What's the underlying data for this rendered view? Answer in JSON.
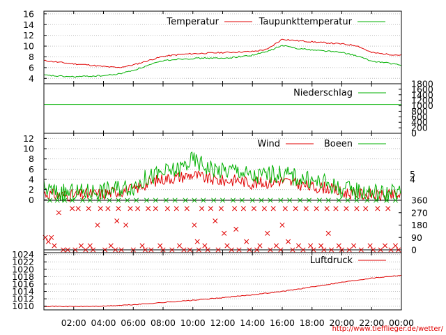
{
  "source_url": "http://www.tiefflieger.de/wetter/",
  "colors": {
    "series_red": "#e00000",
    "series_green": "#00b000",
    "grid": "#c0c0c0",
    "axis": "#000000"
  },
  "time_axis": {
    "ticks": [
      "02:00",
      "04:00",
      "06:00",
      "08:00",
      "10:00",
      "12:00",
      "14:00",
      "16:00",
      "18:00",
      "20:00",
      "22:00",
      "00:00"
    ],
    "tick_hours": [
      2,
      4,
      6,
      8,
      10,
      12,
      14,
      16,
      18,
      20,
      22,
      24
    ],
    "range_hours": [
      0,
      24
    ]
  },
  "chart_data": [
    {
      "type": "line",
      "panel": "temperature",
      "ylim": [
        3,
        16.5
      ],
      "yticks": [
        4,
        6,
        8,
        10,
        12,
        14,
        16
      ],
      "grid": true,
      "legend_placement": "top-right",
      "x_hours": [
        0,
        1,
        2,
        3,
        4,
        5,
        6,
        7,
        8,
        9,
        10,
        11,
        12,
        13,
        14,
        15,
        16,
        17,
        18,
        19,
        20,
        21,
        22,
        23,
        24
      ],
      "series": [
        {
          "name": "Temperatur",
          "color": "#e00000",
          "values": [
            7.3,
            7.0,
            6.7,
            6.5,
            6.2,
            6.0,
            6.5,
            7.3,
            8.1,
            8.4,
            8.6,
            8.7,
            8.8,
            8.9,
            9.0,
            9.4,
            11.3,
            11.0,
            10.8,
            10.6,
            10.4,
            10.1,
            8.8,
            8.5,
            8.3
          ]
        },
        {
          "name": "Taupunkttemperatur",
          "color": "#00b000",
          "values": [
            4.6,
            4.4,
            4.3,
            4.4,
            4.5,
            4.8,
            5.5,
            6.4,
            7.3,
            7.6,
            7.7,
            7.8,
            7.7,
            8.0,
            8.3,
            9.0,
            10.1,
            9.6,
            9.3,
            9.1,
            8.8,
            8.2,
            7.2,
            6.9,
            6.4
          ]
        }
      ]
    },
    {
      "type": "line",
      "panel": "precipitation",
      "ylim": [
        0,
        1800
      ],
      "yticks": [
        0,
        200,
        400,
        600,
        800,
        1000,
        1200,
        1400,
        1600,
        1800
      ],
      "grid": false,
      "legend_placement": "top-right",
      "series": [
        {
          "name": "Niederschlag",
          "color": "#00b000",
          "x_hours": [
            0,
            24
          ],
          "values": [
            1050,
            1050
          ]
        }
      ]
    },
    {
      "type": "line",
      "panel": "wind",
      "ylim": [
        -0.5,
        13
      ],
      "yticks": [
        0,
        2,
        4,
        6,
        8,
        10,
        12
      ],
      "right_labels": [
        4,
        5
      ],
      "grid": true,
      "legend_placement": "top-right",
      "x_hours": [
        0,
        1,
        2,
        3,
        4,
        5,
        6,
        7,
        8,
        9,
        10,
        11,
        12,
        13,
        14,
        15,
        16,
        17,
        18,
        19,
        20,
        21,
        22,
        23,
        24
      ],
      "series": [
        {
          "name": "Wind",
          "color": "#e00000",
          "values": [
            1.3,
            0.9,
            0.9,
            1.1,
            1.2,
            1.7,
            2.0,
            3.3,
            4.1,
            4.4,
            4.9,
            4.1,
            3.7,
            3.9,
            3.2,
            3.4,
            3.7,
            3.1,
            2.5,
            2.4,
            1.4,
            1.2,
            1.0,
            0.8,
            1.0
          ]
        },
        {
          "name": "Boeen",
          "color": "#00b000",
          "values": [
            2.2,
            1.3,
            1.4,
            1.6,
            1.8,
            2.3,
            2.7,
            4.4,
            5.2,
            5.9,
            7.8,
            6.4,
            5.6,
            5.9,
            4.4,
            5.0,
            5.1,
            4.4,
            3.6,
            3.3,
            2.0,
            1.8,
            1.6,
            1.2,
            1.5
          ]
        }
      ]
    },
    {
      "type": "scatter",
      "panel": "wind_direction",
      "ylim": [
        0,
        360
      ],
      "yticks": [
        0,
        90,
        180,
        270,
        360
      ],
      "marker": "x",
      "series": [
        {
          "name": "",
          "color": "#e00000",
          "points": [
            [
              0.1,
              90
            ],
            [
              0.3,
              60
            ],
            [
              0.5,
              90
            ],
            [
              0.7,
              30
            ],
            [
              1.0,
              270
            ],
            [
              1.3,
              0
            ],
            [
              1.6,
              0
            ],
            [
              1.9,
              300
            ],
            [
              2.1,
              0
            ],
            [
              2.3,
              300
            ],
            [
              2.5,
              30
            ],
            [
              2.8,
              0
            ],
            [
              3.0,
              300
            ],
            [
              3.1,
              30
            ],
            [
              3.3,
              0
            ],
            [
              3.6,
              180
            ],
            [
              3.8,
              300
            ],
            [
              4.1,
              0
            ],
            [
              4.3,
              300
            ],
            [
              4.5,
              30
            ],
            [
              4.8,
              0
            ],
            [
              4.9,
              210
            ],
            [
              5.0,
              300
            ],
            [
              5.2,
              0
            ],
            [
              5.5,
              180
            ],
            [
              5.8,
              300
            ],
            [
              6.0,
              0
            ],
            [
              6.3,
              300
            ],
            [
              6.6,
              30
            ],
            [
              6.8,
              0
            ],
            [
              7.0,
              300
            ],
            [
              7.2,
              0
            ],
            [
              7.5,
              300
            ],
            [
              7.8,
              30
            ],
            [
              8.0,
              0
            ],
            [
              8.3,
              300
            ],
            [
              8.6,
              0
            ],
            [
              8.9,
              300
            ],
            [
              9.1,
              30
            ],
            [
              9.4,
              0
            ],
            [
              9.6,
              300
            ],
            [
              9.8,
              0
            ],
            [
              10.1,
              180
            ],
            [
              10.3,
              60
            ],
            [
              10.4,
              0
            ],
            [
              10.6,
              300
            ],
            [
              10.8,
              30
            ],
            [
              11.0,
              0
            ],
            [
              11.2,
              300
            ],
            [
              11.5,
              210
            ],
            [
              11.7,
              0
            ],
            [
              11.9,
              300
            ],
            [
              12.1,
              120
            ],
            [
              12.3,
              30
            ],
            [
              12.6,
              0
            ],
            [
              12.8,
              300
            ],
            [
              12.9,
              150
            ],
            [
              13.1,
              0
            ],
            [
              13.4,
              300
            ],
            [
              13.6,
              60
            ],
            [
              13.8,
              0
            ],
            [
              14.1,
              300
            ],
            [
              14.3,
              0
            ],
            [
              14.5,
              30
            ],
            [
              14.8,
              300
            ],
            [
              15.0,
              120
            ],
            [
              15.2,
              0
            ],
            [
              15.4,
              300
            ],
            [
              15.6,
              30
            ],
            [
              15.9,
              0
            ],
            [
              16.0,
              180
            ],
            [
              16.2,
              300
            ],
            [
              16.4,
              60
            ],
            [
              16.7,
              0
            ],
            [
              16.9,
              300
            ],
            [
              17.1,
              30
            ],
            [
              17.4,
              0
            ],
            [
              17.6,
              300
            ],
            [
              17.9,
              30
            ],
            [
              18.1,
              0
            ],
            [
              18.3,
              300
            ],
            [
              18.6,
              30
            ],
            [
              18.8,
              0
            ],
            [
              19.0,
              300
            ],
            [
              19.1,
              120
            ],
            [
              19.3,
              0
            ],
            [
              19.6,
              300
            ],
            [
              19.8,
              30
            ],
            [
              20.0,
              0
            ],
            [
              20.3,
              300
            ],
            [
              20.5,
              0
            ],
            [
              20.8,
              30
            ],
            [
              21.0,
              300
            ],
            [
              21.3,
              0
            ],
            [
              21.6,
              300
            ],
            [
              21.9,
              30
            ],
            [
              22.1,
              0
            ],
            [
              22.4,
              300
            ],
            [
              22.6,
              0
            ],
            [
              22.9,
              30
            ],
            [
              23.1,
              300
            ],
            [
              23.3,
              0
            ],
            [
              23.6,
              30
            ],
            [
              23.8,
              0
            ]
          ]
        },
        {
          "name": "",
          "color": "#00b000",
          "points": [
            [
              0.4,
              360
            ],
            [
              0.9,
              360
            ],
            [
              1.4,
              360
            ],
            [
              1.9,
              360
            ],
            [
              2.6,
              360
            ],
            [
              3.1,
              360
            ],
            [
              3.7,
              360
            ],
            [
              4.4,
              360
            ],
            [
              5.0,
              360
            ],
            [
              5.6,
              360
            ],
            [
              6.2,
              360
            ],
            [
              6.9,
              360
            ],
            [
              7.5,
              360
            ],
            [
              8.2,
              360
            ],
            [
              8.8,
              360
            ],
            [
              9.5,
              360
            ],
            [
              10.1,
              360
            ],
            [
              10.7,
              360
            ],
            [
              11.4,
              360
            ],
            [
              12.0,
              360
            ],
            [
              12.7,
              360
            ],
            [
              13.3,
              360
            ],
            [
              14.0,
              360
            ],
            [
              14.6,
              360
            ],
            [
              15.2,
              360
            ],
            [
              15.9,
              360
            ],
            [
              16.5,
              360
            ],
            [
              17.2,
              360
            ],
            [
              17.8,
              360
            ],
            [
              18.5,
              360
            ],
            [
              19.1,
              360
            ],
            [
              19.8,
              360
            ],
            [
              20.4,
              360
            ],
            [
              21.0,
              360
            ],
            [
              21.7,
              360
            ],
            [
              22.3,
              360
            ],
            [
              23.0,
              360
            ],
            [
              23.6,
              360
            ]
          ]
        }
      ]
    },
    {
      "type": "line",
      "panel": "pressure",
      "ylim": [
        1009,
        1024.5
      ],
      "yticks": [
        1010,
        1012,
        1014,
        1016,
        1018,
        1020,
        1022,
        1024
      ],
      "grid": true,
      "legend_placement": "top-right",
      "x_hours": [
        0,
        2,
        4,
        6,
        8,
        10,
        12,
        14,
        16,
        18,
        20,
        22,
        24
      ],
      "series": [
        {
          "name": "Luftdruck",
          "color": "#e00000",
          "values": [
            1010.0,
            1009.9,
            1010.0,
            1010.4,
            1011.0,
            1011.6,
            1012.3,
            1013.1,
            1014.0,
            1015.2,
            1016.5,
            1017.6,
            1018.4
          ]
        }
      ]
    }
  ]
}
